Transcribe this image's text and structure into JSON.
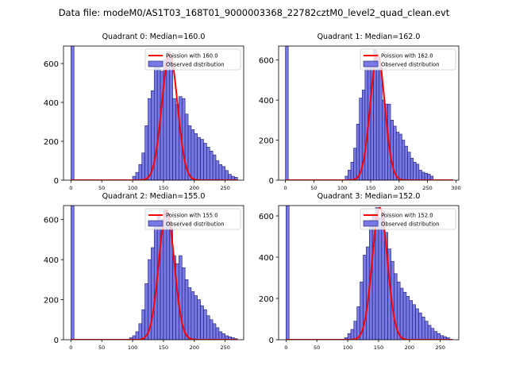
{
  "figure_title": "Data file: modeM0/AS1T03_168T01_9000003368_22782cztM0_level2_quad_clean.evt",
  "colors": {
    "bar_fill": "#7878e6",
    "bar_edge": "#1a1a6e",
    "poisson_line": "#ff0000",
    "axis": "#000000"
  },
  "chart_data": [
    {
      "type": "bar",
      "title": "Quadrant 0: Median=160.0",
      "xlim": [
        -12,
        280
      ],
      "ylim": [
        0,
        690
      ],
      "xticks": [
        0,
        50,
        100,
        150,
        200,
        250
      ],
      "yticks": [
        0,
        200,
        400,
        600
      ],
      "legend": [
        "Poission with 160.0",
        "Observed distribution"
      ],
      "legend_position": "top-right",
      "series": [
        {
          "name": "Observed distribution",
          "bin_width": 5,
          "x": [
            0,
            100,
            105,
            110,
            115,
            120,
            125,
            130,
            135,
            140,
            145,
            150,
            155,
            160,
            165,
            170,
            175,
            180,
            185,
            190,
            195,
            200,
            205,
            210,
            215,
            220,
            225,
            230,
            235,
            240,
            245,
            250,
            255,
            260,
            265
          ],
          "values": [
            690,
            20,
            40,
            80,
            140,
            280,
            420,
            460,
            580,
            600,
            560,
            620,
            660,
            640,
            420,
            390,
            430,
            420,
            340,
            280,
            260,
            240,
            220,
            210,
            190,
            170,
            150,
            130,
            100,
            80,
            70,
            50,
            30,
            20,
            15
          ]
        },
        {
          "name": "Poission with 160.0",
          "mean": 160.0,
          "x_range": [
            0,
            270
          ],
          "peak": 650
        }
      ]
    },
    {
      "type": "bar",
      "title": "Quadrant 1: Median=162.0",
      "xlim": [
        -12,
        305
      ],
      "ylim": [
        0,
        670
      ],
      "xticks": [
        0,
        50,
        100,
        150,
        200,
        250,
        300
      ],
      "yticks": [
        0,
        200,
        400,
        600
      ],
      "legend": [
        "Poission with 162.0",
        "Observed distribution"
      ],
      "legend_position": "top-right",
      "series": [
        {
          "name": "Observed distribution",
          "bin_width": 5,
          "x": [
            0,
            105,
            110,
            115,
            120,
            125,
            130,
            135,
            140,
            145,
            150,
            155,
            160,
            165,
            170,
            175,
            180,
            185,
            190,
            195,
            200,
            205,
            210,
            215,
            220,
            225,
            230,
            235,
            240,
            245,
            250,
            255
          ],
          "values": [
            670,
            20,
            50,
            90,
            160,
            280,
            410,
            450,
            580,
            570,
            590,
            650,
            620,
            560,
            400,
            380,
            380,
            300,
            270,
            240,
            230,
            200,
            170,
            140,
            110,
            90,
            80,
            50,
            40,
            35,
            30,
            20
          ]
        },
        {
          "name": "Poission with 162.0",
          "mean": 162.0,
          "x_range": [
            0,
            295
          ],
          "peak": 630
        }
      ]
    },
    {
      "type": "bar",
      "title": "Quadrant 2: Median=155.0",
      "xlim": [
        -12,
        280
      ],
      "ylim": [
        0,
        670
      ],
      "xticks": [
        0,
        50,
        100,
        150,
        200,
        250
      ],
      "yticks": [
        0,
        200,
        400,
        600
      ],
      "legend": [
        "Poission with 155.0",
        "Observed distribution"
      ],
      "legend_position": "top-right",
      "series": [
        {
          "name": "Observed distribution",
          "bin_width": 5,
          "x": [
            0,
            95,
            100,
            105,
            110,
            115,
            120,
            125,
            130,
            135,
            140,
            145,
            150,
            155,
            160,
            165,
            170,
            175,
            180,
            185,
            190,
            195,
            200,
            205,
            210,
            215,
            220,
            225,
            230,
            235,
            240,
            245,
            250,
            255,
            260,
            265
          ],
          "values": [
            670,
            10,
            20,
            40,
            80,
            150,
            280,
            400,
            460,
            580,
            620,
            600,
            650,
            630,
            560,
            420,
            380,
            420,
            360,
            300,
            260,
            240,
            220,
            200,
            170,
            150,
            120,
            100,
            80,
            60,
            40,
            30,
            20,
            15,
            10,
            5
          ]
        },
        {
          "name": "Poission with 155.0",
          "mean": 155.0,
          "x_range": [
            0,
            270
          ],
          "peak": 645
        }
      ]
    },
    {
      "type": "bar",
      "title": "Quadrant 3: Median=152.0",
      "xlim": [
        -12,
        280
      ],
      "ylim": [
        0,
        650
      ],
      "xticks": [
        0,
        50,
        100,
        150,
        200,
        250
      ],
      "yticks": [
        0,
        200,
        400,
        600
      ],
      "legend": [
        "Poission with 152.0",
        "Observed distribution"
      ],
      "legend_position": "top-right",
      "series": [
        {
          "name": "Observed distribution",
          "bin_width": 5,
          "x": [
            0,
            95,
            100,
            105,
            110,
            115,
            120,
            125,
            130,
            135,
            140,
            145,
            150,
            155,
            160,
            165,
            170,
            175,
            180,
            185,
            190,
            195,
            200,
            205,
            210,
            215,
            220,
            225,
            230,
            235,
            240,
            245,
            250,
            255,
            260
          ],
          "values": [
            650,
            10,
            30,
            50,
            90,
            160,
            280,
            410,
            450,
            580,
            610,
            640,
            590,
            620,
            520,
            440,
            380,
            320,
            280,
            250,
            230,
            210,
            190,
            170,
            150,
            130,
            110,
            90,
            70,
            55,
            40,
            30,
            20,
            15,
            10
          ]
        },
        {
          "name": "Poission with 152.0",
          "mean": 152.0,
          "x_range": [
            0,
            270
          ],
          "peak": 640
        }
      ]
    }
  ]
}
